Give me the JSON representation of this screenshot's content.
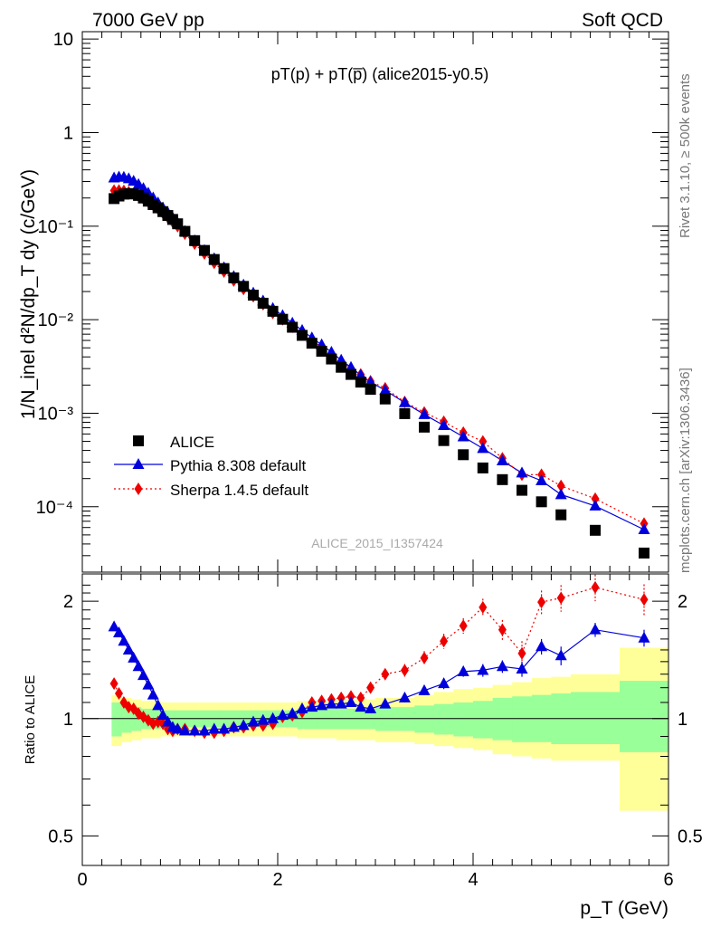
{
  "header": {
    "left": "7000 GeV pp",
    "right": "Soft QCD"
  },
  "side_labels": {
    "rivet": "Rivet 3.1.10, ≥ 500k events",
    "mcplots": "mcplots.cern.ch [arXiv:1306.3436]"
  },
  "chart_data": [
    {
      "type": "scatter",
      "id": "main",
      "title": "pT(p) + pT(p̅) (alice2015-y0.5)",
      "watermark": "ALICE_2015_I1357424",
      "xlabel": "p_T (GeV)",
      "ylabel": "1/N_inel d²N/dp_T dy (c/GeV)",
      "yscale": "log",
      "xlim": [
        0,
        6
      ],
      "ylim": [
        2e-05,
        12
      ],
      "y_ticks": [
        {
          "value": 10,
          "label": "10"
        },
        {
          "value": 1,
          "label": "1"
        },
        {
          "value": 0.1,
          "label": "10⁻¹"
        },
        {
          "value": 0.01,
          "label": "10⁻²"
        },
        {
          "value": 0.001,
          "label": "10⁻³"
        },
        {
          "value": 0.0001,
          "label": "10⁻⁴"
        }
      ],
      "legend_position": "bottom-left",
      "series": [
        {
          "name": "ALICE",
          "color": "#000000",
          "marker": "square",
          "line": "none",
          "x": [
            0.325,
            0.375,
            0.425,
            0.475,
            0.525,
            0.575,
            0.625,
            0.675,
            0.725,
            0.775,
            0.825,
            0.875,
            0.925,
            0.975,
            1.05,
            1.15,
            1.25,
            1.35,
            1.45,
            1.55,
            1.65,
            1.75,
            1.85,
            1.95,
            2.05,
            2.15,
            2.25,
            2.35,
            2.45,
            2.55,
            2.65,
            2.75,
            2.85,
            2.95,
            3.1,
            3.3,
            3.5,
            3.7,
            3.9,
            4.1,
            4.3,
            4.5,
            4.7,
            4.9,
            5.25,
            5.75
          ],
          "values": [
            0.197,
            0.21,
            0.22,
            0.223,
            0.221,
            0.213,
            0.2,
            0.185,
            0.17,
            0.157,
            0.143,
            0.13,
            0.118,
            0.106,
            0.088,
            0.07,
            0.055,
            0.044,
            0.0352,
            0.028,
            0.0227,
            0.0183,
            0.015,
            0.0123,
            0.0101,
            0.0083,
            0.0068,
            0.0056,
            0.0046,
            0.0038,
            0.0031,
            0.0026,
            0.00215,
            0.0018,
            0.00142,
            0.00099,
            0.00071,
            0.00051,
            0.00036,
            0.00026,
            0.000195,
            0.00015,
            0.000113,
            8.2e-05,
            5.6e-05,
            3.2e-05
          ]
        },
        {
          "name": "Pythia 8.308 default",
          "color": "#0000dd",
          "marker": "triangle",
          "line": "solid",
          "x": [
            0.325,
            0.375,
            0.425,
            0.475,
            0.525,
            0.575,
            0.625,
            0.675,
            0.725,
            0.775,
            0.825,
            0.875,
            0.925,
            0.975,
            1.05,
            1.15,
            1.25,
            1.35,
            1.45,
            1.55,
            1.65,
            1.75,
            1.85,
            1.95,
            2.05,
            2.15,
            2.25,
            2.35,
            2.45,
            2.55,
            2.65,
            2.75,
            2.85,
            2.95,
            3.1,
            3.3,
            3.5,
            3.7,
            3.9,
            4.1,
            4.3,
            4.5,
            4.7,
            4.9,
            5.25,
            5.75
          ],
          "values": [
            0.328,
            0.336,
            0.334,
            0.322,
            0.303,
            0.279,
            0.253,
            0.226,
            0.201,
            0.178,
            0.157,
            0.139,
            0.123,
            0.109,
            0.088,
            0.07,
            0.055,
            0.045,
            0.036,
            0.029,
            0.0235,
            0.0193,
            0.0159,
            0.0132,
            0.0111,
            0.0092,
            0.0077,
            0.0064,
            0.0054,
            0.0045,
            0.0037,
            0.0031,
            0.00255,
            0.00215,
            0.00176,
            0.0013,
            0.00097,
            0.00074,
            0.00056,
            0.00042,
            0.00031,
            0.00023,
            0.00019,
            0.000135,
            0.000102,
            5.7e-05
          ]
        },
        {
          "name": "Sherpa 1.4.5 default",
          "color": "#ee0000",
          "marker": "diamond",
          "line": "dotted",
          "x": [
            0.325,
            0.375,
            0.425,
            0.475,
            0.525,
            0.575,
            0.625,
            0.675,
            0.725,
            0.775,
            0.825,
            0.875,
            0.925,
            0.975,
            1.05,
            1.15,
            1.25,
            1.35,
            1.45,
            1.55,
            1.65,
            1.75,
            1.85,
            1.95,
            2.05,
            2.15,
            2.25,
            2.35,
            2.45,
            2.55,
            2.65,
            2.75,
            2.85,
            2.95,
            3.1,
            3.3,
            3.5,
            3.7,
            3.9,
            4.1,
            4.3,
            4.5,
            4.7,
            4.9,
            5.25,
            5.75
          ],
          "values": [
            0.24,
            0.241,
            0.238,
            0.231,
            0.222,
            0.211,
            0.197,
            0.182,
            0.168,
            0.153,
            0.138,
            0.124,
            0.111,
            0.1,
            0.083,
            0.065,
            0.051,
            0.0405,
            0.0327,
            0.0262,
            0.0213,
            0.0178,
            0.0146,
            0.0118,
            0.0101,
            0.0084,
            0.0071,
            0.006,
            0.0051,
            0.0043,
            0.0036,
            0.003,
            0.0026,
            0.0022,
            0.00185,
            0.00132,
            0.00102,
            0.00081,
            0.00062,
            0.0005,
            0.00033,
            0.00022,
            0.00022,
            0.000167,
            0.000122,
            6.6e-05
          ]
        }
      ]
    },
    {
      "type": "scatter",
      "id": "ratio",
      "ylabel": "Ratio to ALICE",
      "xlabel": "p_T (GeV)",
      "xlim": [
        0,
        6
      ],
      "ylim": [
        0.42,
        2.35
      ],
      "yscale": "log",
      "x_ticks": [
        {
          "value": 0,
          "label": "0"
        },
        {
          "value": 2,
          "label": "2"
        },
        {
          "value": 4,
          "label": "4"
        },
        {
          "value": 6,
          "label": "6"
        }
      ],
      "y_ticks": [
        {
          "value": 2,
          "label": "2"
        },
        {
          "value": 1,
          "label": "1"
        },
        {
          "value": 0.5,
          "label": "0.5"
        }
      ],
      "bands": [
        {
          "name": "total uncertainty",
          "color": "#ffff99",
          "edges": [
            0.3,
            0.4,
            0.5,
            0.6,
            0.7,
            0.8,
            0.9,
            1.0,
            1.2,
            1.4,
            1.6,
            1.8,
            2.0,
            2.2,
            2.4,
            2.6,
            2.8,
            3.0,
            3.2,
            3.4,
            3.6,
            3.8,
            4.0,
            4.2,
            4.4,
            4.6,
            4.8,
            5.0,
            5.5,
            6.0
          ],
          "low": [
            0.85,
            0.87,
            0.88,
            0.89,
            0.89,
            0.9,
            0.9,
            0.9,
            0.9,
            0.9,
            0.9,
            0.9,
            0.9,
            0.89,
            0.89,
            0.88,
            0.88,
            0.87,
            0.87,
            0.86,
            0.85,
            0.84,
            0.83,
            0.81,
            0.8,
            0.79,
            0.78,
            0.78,
            0.58
          ],
          "high": [
            1.15,
            1.13,
            1.12,
            1.11,
            1.11,
            1.1,
            1.1,
            1.1,
            1.1,
            1.1,
            1.1,
            1.1,
            1.1,
            1.11,
            1.11,
            1.12,
            1.12,
            1.13,
            1.13,
            1.15,
            1.17,
            1.19,
            1.2,
            1.22,
            1.24,
            1.27,
            1.28,
            1.3,
            1.52
          ]
        },
        {
          "name": "statistical uncertainty",
          "color": "#99ff99",
          "edges": [
            0.3,
            0.4,
            0.5,
            0.6,
            0.7,
            0.8,
            0.9,
            1.0,
            1.2,
            1.4,
            1.6,
            1.8,
            2.0,
            2.2,
            2.4,
            2.6,
            2.8,
            3.0,
            3.2,
            3.4,
            3.6,
            3.8,
            4.0,
            4.2,
            4.4,
            4.6,
            4.8,
            5.0,
            5.5,
            6.0
          ],
          "low": [
            0.9,
            0.92,
            0.93,
            0.94,
            0.94,
            0.95,
            0.95,
            0.95,
            0.95,
            0.95,
            0.95,
            0.95,
            0.95,
            0.94,
            0.94,
            0.94,
            0.94,
            0.93,
            0.93,
            0.92,
            0.91,
            0.9,
            0.89,
            0.88,
            0.87,
            0.87,
            0.86,
            0.86,
            0.82
          ],
          "high": [
            1.1,
            1.08,
            1.07,
            1.06,
            1.06,
            1.05,
            1.05,
            1.05,
            1.05,
            1.05,
            1.05,
            1.05,
            1.05,
            1.06,
            1.06,
            1.06,
            1.06,
            1.07,
            1.07,
            1.08,
            1.09,
            1.1,
            1.11,
            1.13,
            1.14,
            1.15,
            1.16,
            1.17,
            1.25
          ]
        }
      ],
      "reference_line": 1,
      "series": [
        {
          "name": "Pythia 8.308 default",
          "color": "#0000dd",
          "marker": "triangle",
          "line": "solid",
          "x": [
            0.325,
            0.375,
            0.425,
            0.475,
            0.525,
            0.575,
            0.625,
            0.675,
            0.725,
            0.775,
            0.825,
            0.875,
            0.925,
            0.975,
            1.05,
            1.15,
            1.25,
            1.35,
            1.45,
            1.55,
            1.65,
            1.75,
            1.85,
            1.95,
            2.05,
            2.15,
            2.25,
            2.35,
            2.45,
            2.55,
            2.65,
            2.75,
            2.85,
            2.95,
            3.1,
            3.3,
            3.5,
            3.7,
            3.9,
            4.1,
            4.3,
            4.5,
            4.7,
            4.9,
            5.25,
            5.75
          ],
          "values": [
            1.72,
            1.66,
            1.58,
            1.5,
            1.43,
            1.36,
            1.29,
            1.22,
            1.15,
            1.08,
            1.02,
            0.98,
            0.95,
            0.94,
            0.93,
            0.93,
            0.93,
            0.94,
            0.94,
            0.95,
            0.96,
            0.98,
            0.99,
            1.0,
            1.02,
            1.03,
            1.06,
            1.07,
            1.08,
            1.09,
            1.09,
            1.1,
            1.07,
            1.06,
            1.09,
            1.13,
            1.18,
            1.23,
            1.32,
            1.33,
            1.36,
            1.34,
            1.53,
            1.45,
            1.69,
            1.61
          ],
          "err": [
            0.02,
            0.02,
            0.02,
            0.02,
            0.02,
            0.02,
            0.02,
            0.02,
            0.02,
            0.02,
            0.02,
            0.02,
            0.02,
            0.02,
            0.01,
            0.01,
            0.01,
            0.01,
            0.01,
            0.01,
            0.01,
            0.01,
            0.01,
            0.01,
            0.01,
            0.02,
            0.02,
            0.02,
            0.02,
            0.02,
            0.02,
            0.02,
            0.02,
            0.02,
            0.02,
            0.03,
            0.03,
            0.04,
            0.04,
            0.05,
            0.05,
            0.06,
            0.07,
            0.08,
            0.07,
            0.08
          ]
        },
        {
          "name": "Sherpa 1.4.5 default",
          "color": "#ee0000",
          "marker": "diamond",
          "line": "dotted",
          "x": [
            0.325,
            0.375,
            0.425,
            0.475,
            0.525,
            0.575,
            0.625,
            0.675,
            0.725,
            0.775,
            0.825,
            0.875,
            0.925,
            0.975,
            1.05,
            1.15,
            1.25,
            1.35,
            1.45,
            1.55,
            1.65,
            1.75,
            1.85,
            1.95,
            2.05,
            2.15,
            2.25,
            2.35,
            2.45,
            2.55,
            2.65,
            2.75,
            2.85,
            2.95,
            3.1,
            3.3,
            3.5,
            3.7,
            3.9,
            4.1,
            4.3,
            4.5,
            4.7,
            4.9,
            5.25,
            5.75
          ],
          "values": [
            1.23,
            1.16,
            1.1,
            1.07,
            1.06,
            1.03,
            1.01,
            0.99,
            0.97,
            0.98,
            0.97,
            0.94,
            0.93,
            0.94,
            0.94,
            0.93,
            0.92,
            0.92,
            0.93,
            0.95,
            0.95,
            0.96,
            0.96,
            0.97,
            1.01,
            1.02,
            1.04,
            1.1,
            1.11,
            1.12,
            1.13,
            1.14,
            1.13,
            1.2,
            1.3,
            1.33,
            1.43,
            1.58,
            1.73,
            1.93,
            1.69,
            1.47,
            1.99,
            2.04,
            2.17,
            2.02
          ],
          "err": [
            0.02,
            0.02,
            0.02,
            0.02,
            0.02,
            0.02,
            0.02,
            0.02,
            0.02,
            0.02,
            0.02,
            0.02,
            0.02,
            0.02,
            0.01,
            0.01,
            0.01,
            0.01,
            0.01,
            0.01,
            0.01,
            0.01,
            0.01,
            0.01,
            0.01,
            0.02,
            0.02,
            0.02,
            0.02,
            0.02,
            0.02,
            0.03,
            0.03,
            0.04,
            0.04,
            0.05,
            0.06,
            0.07,
            0.08,
            0.1,
            0.1,
            0.11,
            0.14,
            0.16,
            0.17,
            0.19
          ]
        }
      ]
    }
  ]
}
